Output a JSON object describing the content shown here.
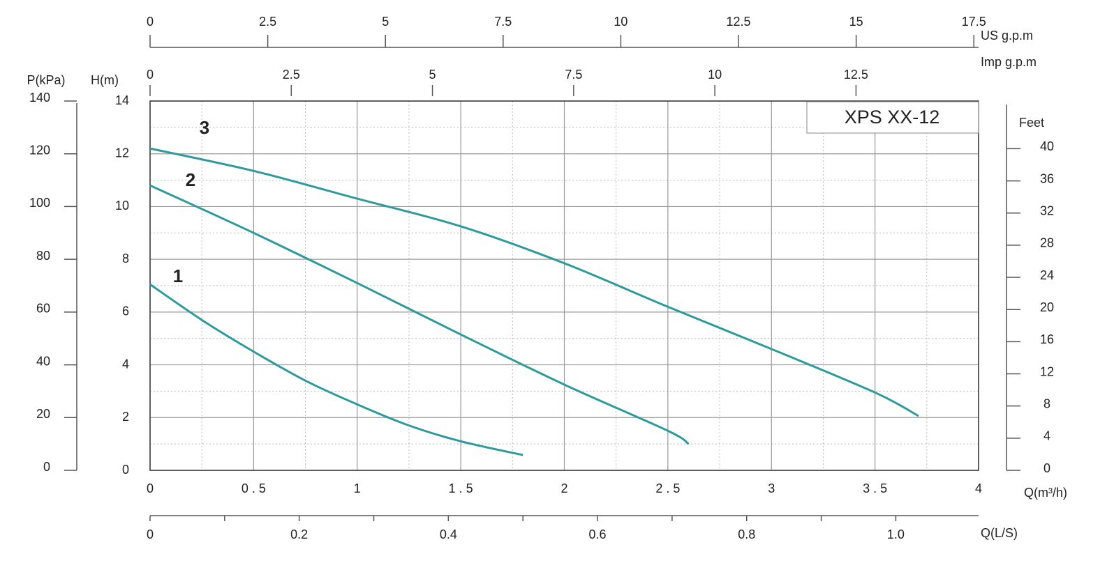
{
  "chart_data": {
    "type": "line",
    "title": "XPS   XX-12",
    "xlabel": "Q(m³/h)",
    "ylabel": "H(m)",
    "xlim": [
      0,
      4
    ],
    "xticks": [
      0,
      {
        "value": 0.5,
        "label": "0 . 5"
      },
      1,
      {
        "value": 1.5,
        "label": "1 . 5"
      },
      2,
      {
        "value": 2.5,
        "label": "2 . 5"
      },
      3,
      {
        "value": 3.5,
        "label": "3 . 5"
      },
      4
    ],
    "ylim": [
      0,
      14
    ],
    "yticks": [
      0,
      2,
      4,
      6,
      8,
      10,
      12,
      14
    ],
    "grid": true,
    "series": [
      {
        "name": "1",
        "color": "#2f9a9c",
        "x": [
          0,
          0.25,
          0.5,
          0.75,
          1,
          1.25,
          1.5,
          1.8
        ],
        "values": [
          7.05,
          5.7,
          4.5,
          3.4,
          2.5,
          1.7,
          1.1,
          0.58
        ]
      },
      {
        "name": "2",
        "color": "#2f9a9c",
        "x": [
          0,
          0.5,
          1,
          1.5,
          2,
          2.5,
          2.6
        ],
        "values": [
          10.8,
          9.0,
          7.1,
          5.15,
          3.25,
          1.5,
          1.0
        ]
      },
      {
        "name": "3",
        "color": "#2f9a9c",
        "x": [
          0,
          0.5,
          1,
          1.5,
          2,
          2.5,
          3,
          3.5,
          3.71
        ],
        "values": [
          12.2,
          11.35,
          10.3,
          9.25,
          7.85,
          6.2,
          4.6,
          2.95,
          2.06
        ]
      }
    ],
    "extra_axes": [
      {
        "position": "top",
        "label": "US  g.p.m",
        "xlim": [
          0,
          17.6
        ],
        "xticks": [
          0,
          2.5,
          5,
          7.5,
          10,
          12.5,
          15,
          17.5
        ]
      },
      {
        "position": "top-inner",
        "label": "Imp  g.p.m",
        "xlim": [
          0,
          14.67
        ],
        "xticks": [
          0,
          2.5,
          5,
          7.5,
          10,
          12.5
        ]
      },
      {
        "position": "bottom-outer",
        "label": "Q(L/S)",
        "xlim": [
          0,
          1.111
        ],
        "xticks": [
          0,
          0.2,
          0.4,
          0.6,
          0.8,
          {
            "value": 1.0,
            "label": "1.0"
          }
        ]
      },
      {
        "position": "left-outer",
        "label": "P(kPa)",
        "ylim": [
          0,
          140
        ],
        "yticks": [
          0,
          20,
          40,
          60,
          80,
          100,
          120,
          140
        ]
      },
      {
        "position": "right",
        "label": "Feet",
        "ylim": [
          0,
          45.93
        ],
        "yticks": [
          0,
          4,
          8,
          12,
          16,
          20,
          24,
          28,
          32,
          36,
          40
        ]
      }
    ]
  }
}
